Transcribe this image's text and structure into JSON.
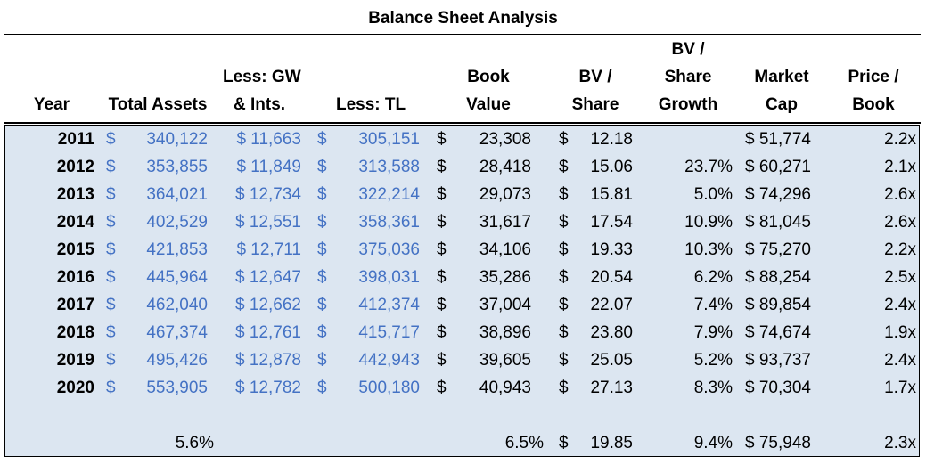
{
  "title": "Balance Sheet Analysis",
  "headers": {
    "year": "Year",
    "total_assets": "Total Assets",
    "less_gw_1": "Less: GW",
    "less_gw_2": "& Ints.",
    "less_tl": "Less: TL",
    "book_value_1": "Book",
    "book_value_2": "Value",
    "bv_share_1": "BV /",
    "bv_share_2": "Share",
    "bv_growth_1": "BV /",
    "bv_growth_2": "Share",
    "bv_growth_3": "Growth",
    "market_cap_1": "Market",
    "market_cap_2": "Cap",
    "price_book_1": "Price /",
    "price_book_2": "Book"
  },
  "rows": [
    {
      "year": "2011",
      "total_assets": "340,122",
      "gw": "$ 11,663",
      "tl": "305,151",
      "book": "23,308",
      "bvs": "12.18",
      "growth": "",
      "mcap": "$ 51,774",
      "pb": "2.2x"
    },
    {
      "year": "2012",
      "total_assets": "353,855",
      "gw": "$ 11,849",
      "tl": "313,588",
      "book": "28,418",
      "bvs": "15.06",
      "growth": "23.7%",
      "mcap": "$ 60,271",
      "pb": "2.1x"
    },
    {
      "year": "2013",
      "total_assets": "364,021",
      "gw": "$ 12,734",
      "tl": "322,214",
      "book": "29,073",
      "bvs": "15.81",
      "growth": "5.0%",
      "mcap": "$ 74,296",
      "pb": "2.6x"
    },
    {
      "year": "2014",
      "total_assets": "402,529",
      "gw": "$ 12,551",
      "tl": "358,361",
      "book": "31,617",
      "bvs": "17.54",
      "growth": "10.9%",
      "mcap": "$ 81,045",
      "pb": "2.6x"
    },
    {
      "year": "2015",
      "total_assets": "421,853",
      "gw": "$ 12,711",
      "tl": "375,036",
      "book": "34,106",
      "bvs": "19.33",
      "growth": "10.3%",
      "mcap": "$ 75,270",
      "pb": "2.2x"
    },
    {
      "year": "2016",
      "total_assets": "445,964",
      "gw": "$ 12,647",
      "tl": "398,031",
      "book": "35,286",
      "bvs": "20.54",
      "growth": "6.2%",
      "mcap": "$ 88,254",
      "pb": "2.5x"
    },
    {
      "year": "2017",
      "total_assets": "462,040",
      "gw": "$ 12,662",
      "tl": "412,374",
      "book": "37,004",
      "bvs": "22.07",
      "growth": "7.4%",
      "mcap": "$ 89,854",
      "pb": "2.4x"
    },
    {
      "year": "2018",
      "total_assets": "467,374",
      "gw": "$ 12,761",
      "tl": "415,717",
      "book": "38,896",
      "bvs": "23.80",
      "growth": "7.9%",
      "mcap": "$ 74,674",
      "pb": "1.9x"
    },
    {
      "year": "2019",
      "total_assets": "495,426",
      "gw": "$ 12,878",
      "tl": "442,943",
      "book": "39,605",
      "bvs": "25.05",
      "growth": "5.2%",
      "mcap": "$ 93,737",
      "pb": "2.4x"
    },
    {
      "year": "2020",
      "total_assets": "553,905",
      "gw": "$ 12,782",
      "tl": "500,180",
      "book": "40,943",
      "bvs": "27.13",
      "growth": "8.3%",
      "mcap": "$ 70,304",
      "pb": "1.7x"
    }
  ],
  "summary": {
    "total_assets": "5.6%",
    "book": "6.5%",
    "bvs": "19.85",
    "growth": "9.4%",
    "mcap": "$ 75,948",
    "pb": "2.3x"
  },
  "currency_symbol": "$",
  "colors": {
    "panel": "#dce6f1",
    "blue_values": "#4472c4"
  }
}
